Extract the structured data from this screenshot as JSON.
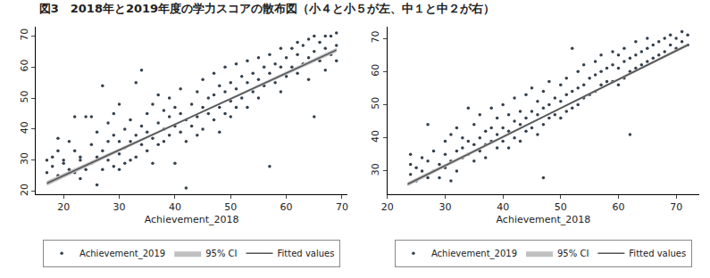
{
  "title": "図3　2018年と2019年度の学力スコアの散布図（小４と小５が左、中１と中２が右）",
  "chart_data": [
    {
      "type": "scatter",
      "x_label": "Achievement_2018",
      "xlim": [
        15,
        71
      ],
      "xticks": [
        20,
        30,
        40,
        50,
        60,
        70
      ],
      "ylim": [
        19,
        73
      ],
      "yticks": [
        20,
        30,
        40,
        50,
        60,
        70
      ],
      "grid": false,
      "legend": "bottom",
      "series": [
        {
          "name": "95% CI",
          "type": "band",
          "color": "#c0c0c0",
          "x": [
            17,
            43,
            69
          ],
          "lower": [
            21.7,
            43.7,
            64.8
          ],
          "upper": [
            23.3,
            44.3,
            66.2
          ]
        },
        {
          "name": "Fitted values",
          "type": "line",
          "color": "#555555",
          "line_style": "solid",
          "x": [
            17,
            43,
            69
          ],
          "values": [
            22.5,
            44,
            65.5
          ]
        },
        {
          "name": "Achievement_2019",
          "type": "scatter",
          "marker": "circle",
          "color": "#34404c",
          "x": [
            17,
            17,
            18,
            18,
            19,
            19,
            19,
            20,
            20,
            21,
            21,
            22,
            22,
            22,
            23,
            23,
            23,
            24,
            24,
            25,
            25,
            25,
            26,
            26,
            26,
            27,
            27,
            27,
            28,
            28,
            28,
            29,
            29,
            29,
            30,
            30,
            30,
            30,
            31,
            31,
            31,
            32,
            32,
            32,
            33,
            33,
            33,
            34,
            34,
            34,
            35,
            35,
            35,
            36,
            36,
            36,
            37,
            37,
            37,
            38,
            38,
            38,
            39,
            39,
            39,
            40,
            40,
            40,
            41,
            41,
            41,
            42,
            42,
            42,
            43,
            43,
            44,
            44,
            44,
            45,
            45,
            45,
            46,
            46,
            47,
            47,
            47,
            48,
            48,
            48,
            49,
            49,
            49,
            50,
            50,
            50,
            51,
            51,
            51,
            52,
            52,
            53,
            53,
            53,
            54,
            54,
            55,
            55,
            55,
            56,
            56,
            57,
            57,
            57,
            58,
            58,
            59,
            59,
            59,
            60,
            60,
            61,
            61,
            62,
            62,
            62,
            63,
            63,
            64,
            64,
            64,
            65,
            65,
            65,
            66,
            66,
            67,
            67,
            67,
            68,
            68,
            69,
            69,
            69
          ],
          "values": [
            26,
            30,
            31,
            28,
            25,
            33,
            37,
            30,
            29,
            36,
            27,
            26,
            33,
            44,
            24,
            30,
            31,
            44,
            27,
            29,
            35,
            44,
            22,
            31,
            39,
            54,
            27,
            33,
            30,
            36,
            42,
            28,
            38,
            45,
            32,
            27,
            36,
            48,
            29,
            40,
            34,
            43,
            30,
            36,
            55,
            38,
            31,
            59,
            41,
            35,
            33,
            45,
            39,
            37,
            48,
            29,
            42,
            51,
            35,
            40,
            36,
            46,
            44,
            38,
            50,
            29,
            41,
            47,
            39,
            45,
            53,
            21,
            43,
            36,
            48,
            41,
            44,
            52,
            38,
            47,
            56,
            40,
            45,
            50,
            51,
            43,
            58,
            47,
            54,
            39,
            52,
            60,
            45,
            49,
            55,
            44,
            53,
            61,
            47,
            50,
            57,
            55,
            62,
            47,
            52,
            58,
            56,
            63,
            50,
            54,
            60,
            28,
            58,
            64,
            55,
            61,
            60,
            66,
            52,
            57,
            63,
            60,
            66,
            58,
            64,
            68,
            61,
            67,
            63,
            69,
            56,
            44,
            65,
            70,
            62,
            68,
            66,
            70,
            59,
            64,
            70,
            67,
            71,
            62
          ]
        }
      ]
    },
    {
      "type": "scatter",
      "x_label": "Achievement_2018",
      "xlim": [
        20,
        74
      ],
      "xticks": [
        20,
        30,
        40,
        50,
        60,
        70
      ],
      "ylim": [
        23,
        73.5
      ],
      "yticks": [
        30,
        40,
        50,
        60,
        70
      ],
      "grid": false,
      "legend": "bottom",
      "series": [
        {
          "name": "95% CI",
          "type": "band",
          "color": "#c0c0c0",
          "x": [
            23.5,
            48,
            72
          ],
          "lower": [
            25.4,
            46.9,
            67.5
          ],
          "upper": [
            26.6,
            47.5,
            68.5
          ]
        },
        {
          "name": "Fitted values",
          "type": "line",
          "color": "#555555",
          "line_style": "solid",
          "x": [
            23.5,
            48,
            72
          ],
          "values": [
            26,
            47.2,
            68
          ]
        },
        {
          "name": "Achievement_2019",
          "type": "scatter",
          "marker": "circle",
          "color": "#34404c",
          "x": [
            24,
            24,
            24,
            25,
            25,
            26,
            26,
            27,
            27,
            27,
            28,
            28,
            29,
            29,
            30,
            30,
            30,
            31,
            31,
            31,
            32,
            32,
            32,
            33,
            33,
            33,
            34,
            34,
            34,
            35,
            35,
            35,
            36,
            36,
            36,
            37,
            37,
            37,
            38,
            38,
            38,
            39,
            39,
            39,
            40,
            40,
            40,
            41,
            41,
            41,
            42,
            42,
            42,
            43,
            43,
            43,
            44,
            44,
            44,
            45,
            45,
            45,
            46,
            46,
            46,
            47,
            47,
            47,
            47,
            48,
            48,
            48,
            49,
            49,
            50,
            50,
            50,
            51,
            51,
            51,
            52,
            52,
            52,
            53,
            53,
            53,
            54,
            54,
            54,
            55,
            55,
            56,
            56,
            56,
            57,
            57,
            57,
            58,
            58,
            59,
            59,
            59,
            60,
            60,
            60,
            61,
            61,
            61,
            62,
            62,
            62,
            63,
            63,
            63,
            64,
            64,
            65,
            65,
            65,
            66,
            66,
            67,
            67,
            68,
            68,
            69,
            69,
            70,
            70,
            71,
            71,
            72,
            72
          ],
          "values": [
            29,
            32,
            35,
            27,
            31,
            30,
            34,
            44,
            28,
            33,
            30,
            36,
            32,
            28,
            35,
            39,
            31,
            27,
            33,
            41,
            36,
            30,
            43,
            37,
            34,
            40,
            49,
            35,
            39,
            38,
            33,
            44,
            40,
            36,
            47,
            38,
            42,
            34,
            43,
            39,
            49,
            41,
            37,
            46,
            43,
            39,
            50,
            42,
            47,
            37,
            45,
            40,
            52,
            44,
            48,
            39,
            46,
            42,
            53,
            48,
            43,
            55,
            47,
            51,
            41,
            28,
            49,
            54,
            44,
            50,
            46,
            57,
            52,
            47,
            51,
            56,
            46,
            53,
            58,
            48,
            67,
            54,
            49,
            55,
            60,
            50,
            56,
            52,
            62,
            58,
            53,
            59,
            63,
            54,
            60,
            56,
            65,
            61,
            57,
            62,
            66,
            57,
            61,
            65,
            56,
            63,
            67,
            58,
            41,
            64,
            60,
            65,
            69,
            61,
            66,
            62,
            67,
            70,
            63,
            68,
            64,
            69,
            65,
            70,
            66,
            68,
            71,
            70,
            67,
            72,
            69,
            71,
            68
          ]
        }
      ]
    }
  ]
}
